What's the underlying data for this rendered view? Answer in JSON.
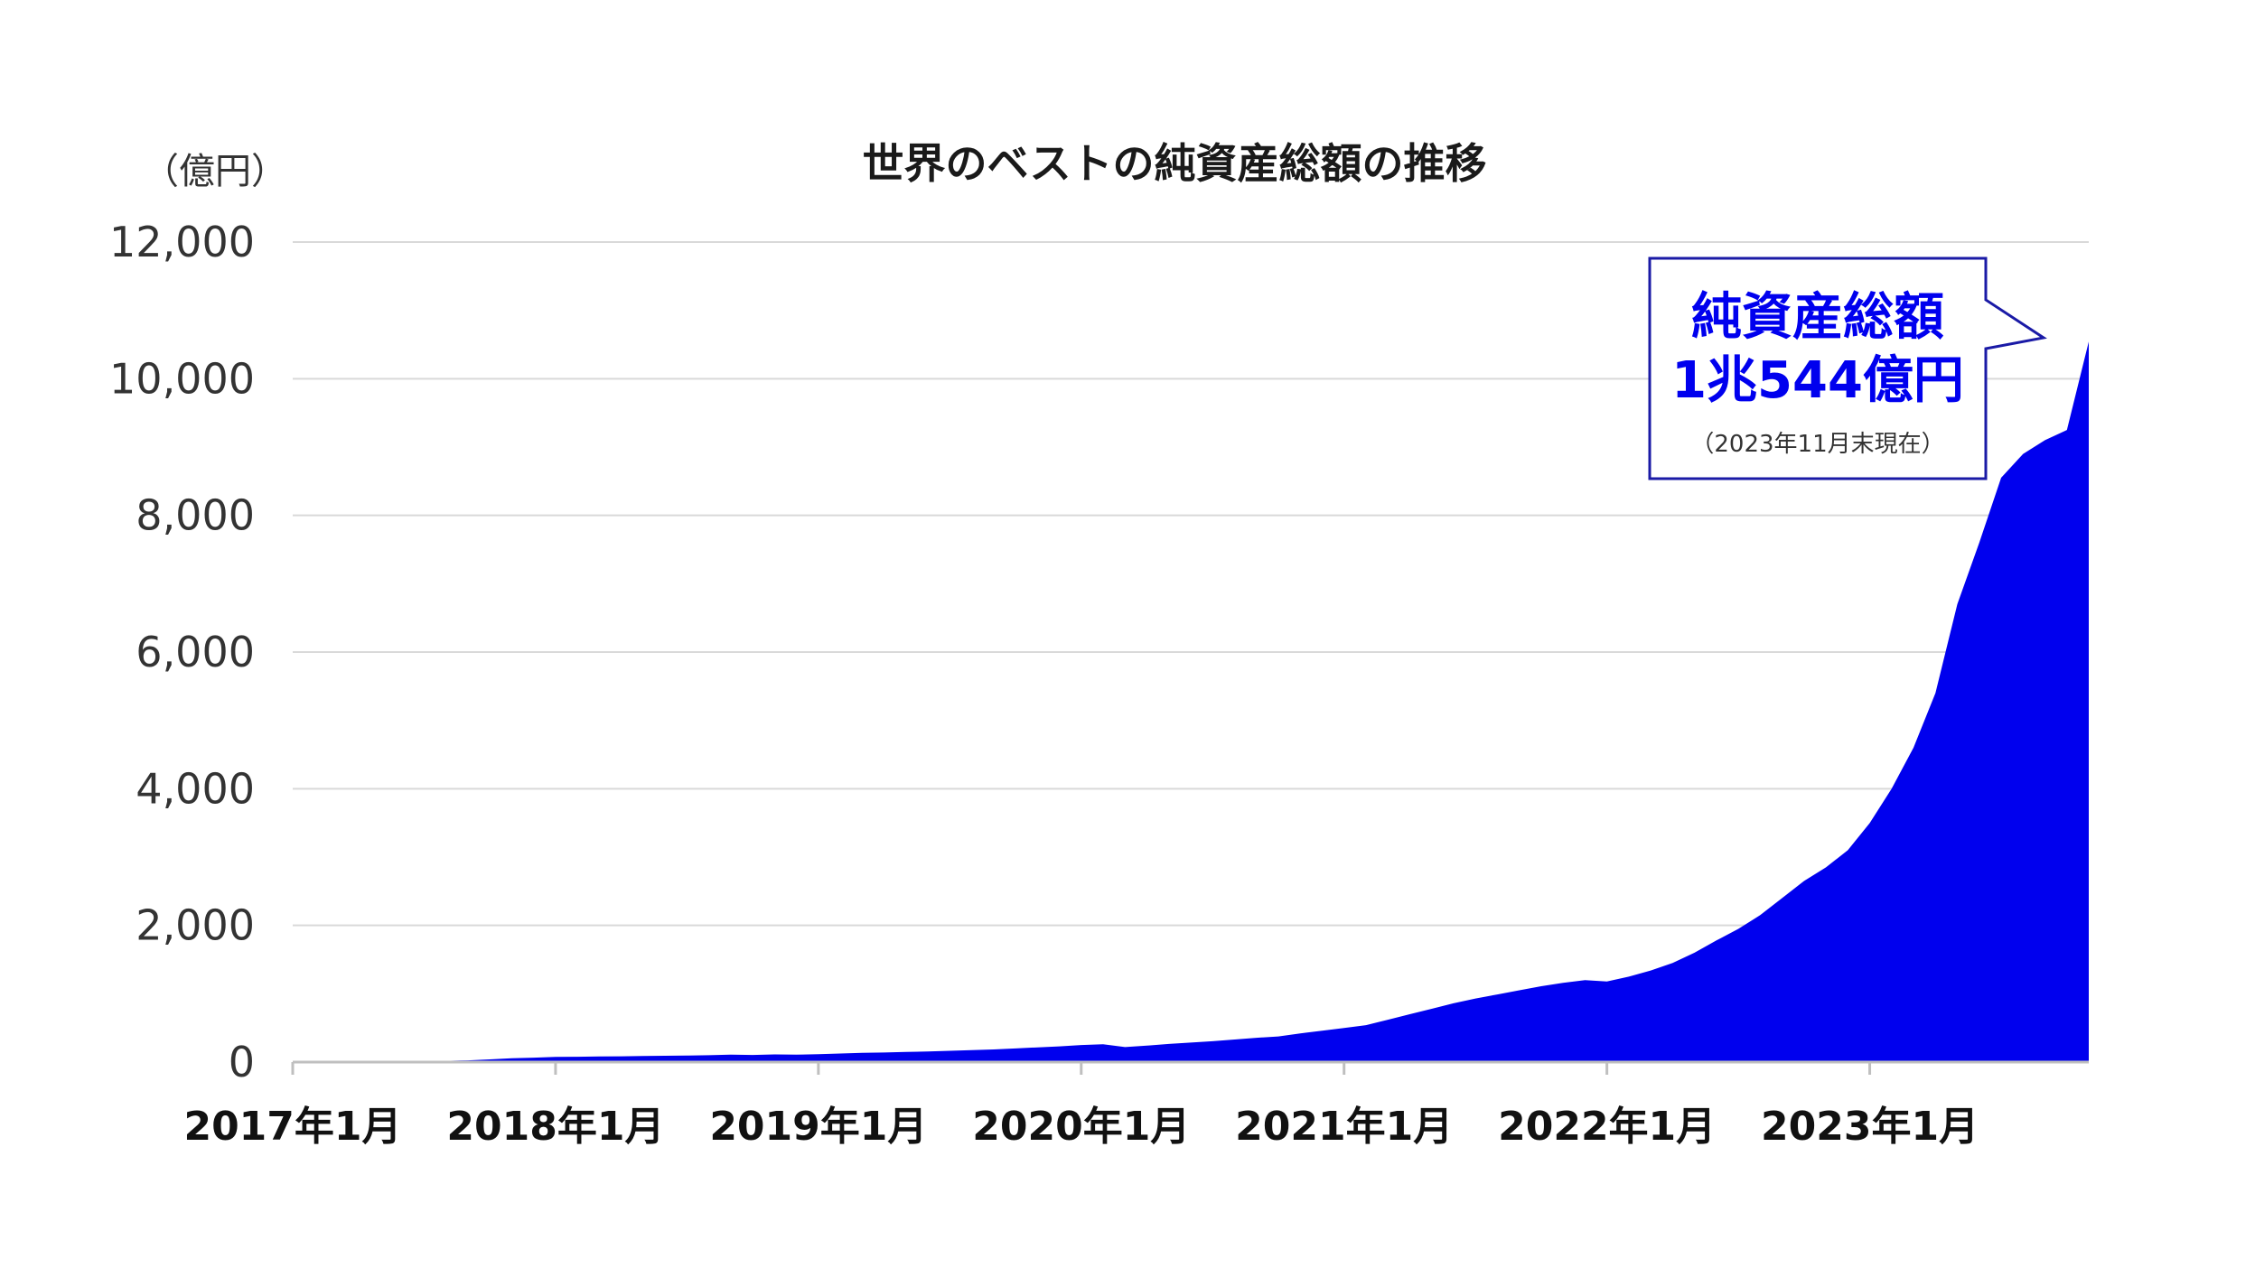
{
  "chart_data": {
    "type": "area",
    "title": "世界のベストの純資産総額の推移",
    "ylabel": "（億円）",
    "xlabel": "",
    "ylim": [
      0,
      12000
    ],
    "yticks": [
      0,
      2000,
      4000,
      6000,
      8000,
      10000,
      12000
    ],
    "ytick_labels": [
      "0",
      "2,000",
      "4,000",
      "6,000",
      "8,000",
      "10,000",
      "12,000"
    ],
    "xlim": [
      "2017-01",
      "2023-11"
    ],
    "xticks": [
      "2017-01",
      "2018-01",
      "2019-01",
      "2020-01",
      "2021-01",
      "2022-01",
      "2023-01"
    ],
    "xtick_labels": [
      "2017年1月",
      "2018年1月",
      "2019年1月",
      "2020年1月",
      "2021年1月",
      "2022年1月",
      "2023年1月"
    ],
    "grid": true,
    "color": "#0000ee",
    "series": [
      {
        "points": [
          [
            "2017-01",
            0
          ],
          [
            "2017-02",
            2
          ],
          [
            "2017-03",
            4
          ],
          [
            "2017-04",
            6
          ],
          [
            "2017-05",
            8
          ],
          [
            "2017-06",
            10
          ],
          [
            "2017-07",
            14
          ],
          [
            "2017-08",
            18
          ],
          [
            "2017-09",
            25
          ],
          [
            "2017-10",
            40
          ],
          [
            "2017-11",
            55
          ],
          [
            "2017-12",
            65
          ],
          [
            "2018-01",
            75
          ],
          [
            "2018-02",
            78
          ],
          [
            "2018-03",
            82
          ],
          [
            "2018-04",
            85
          ],
          [
            "2018-05",
            88
          ],
          [
            "2018-06",
            92
          ],
          [
            "2018-07",
            95
          ],
          [
            "2018-08",
            100
          ],
          [
            "2018-09",
            110
          ],
          [
            "2018-10",
            105
          ],
          [
            "2018-11",
            112
          ],
          [
            "2018-12",
            108
          ],
          [
            "2019-01",
            115
          ],
          [
            "2019-02",
            125
          ],
          [
            "2019-03",
            135
          ],
          [
            "2019-04",
            140
          ],
          [
            "2019-05",
            148
          ],
          [
            "2019-06",
            155
          ],
          [
            "2019-07",
            165
          ],
          [
            "2019-08",
            175
          ],
          [
            "2019-09",
            185
          ],
          [
            "2019-10",
            200
          ],
          [
            "2019-11",
            215
          ],
          [
            "2019-12",
            230
          ],
          [
            "2020-01",
            250
          ],
          [
            "2020-02",
            260
          ],
          [
            "2020-03",
            220
          ],
          [
            "2020-04",
            240
          ],
          [
            "2020-05",
            265
          ],
          [
            "2020-06",
            285
          ],
          [
            "2020-07",
            305
          ],
          [
            "2020-08",
            330
          ],
          [
            "2020-09",
            355
          ],
          [
            "2020-10",
            375
          ],
          [
            "2020-11",
            420
          ],
          [
            "2020-12",
            460
          ],
          [
            "2021-01",
            500
          ],
          [
            "2021-02",
            540
          ],
          [
            "2021-03",
            620
          ],
          [
            "2021-04",
            700
          ],
          [
            "2021-05",
            780
          ],
          [
            "2021-06",
            860
          ],
          [
            "2021-07",
            930
          ],
          [
            "2021-08",
            990
          ],
          [
            "2021-09",
            1050
          ],
          [
            "2021-10",
            1110
          ],
          [
            "2021-11",
            1160
          ],
          [
            "2021-12",
            1200
          ],
          [
            "2022-01",
            1180
          ],
          [
            "2022-02",
            1250
          ],
          [
            "2022-03",
            1340
          ],
          [
            "2022-04",
            1450
          ],
          [
            "2022-05",
            1600
          ],
          [
            "2022-06",
            1780
          ],
          [
            "2022-07",
            1950
          ],
          [
            "2022-08",
            2150
          ],
          [
            "2022-09",
            2400
          ],
          [
            "2022-10",
            2650
          ],
          [
            "2022-11",
            2850
          ],
          [
            "2022-12",
            3100
          ],
          [
            "2023-01",
            3500
          ],
          [
            "2023-02",
            4000
          ],
          [
            "2023-03",
            4600
          ],
          [
            "2023-04",
            5400
          ],
          [
            "2023-05",
            6700
          ],
          [
            "2023-06",
            7600
          ],
          [
            "2023-07",
            8550
          ],
          [
            "2023-08",
            8900
          ],
          [
            "2023-09",
            9100
          ],
          [
            "2023-10",
            9250
          ],
          [
            "2023-11",
            10544
          ]
        ]
      }
    ],
    "annotation": {
      "label": "純資産総額",
      "value": "1兆544億円",
      "note": "（2023年11月末現在）"
    }
  }
}
